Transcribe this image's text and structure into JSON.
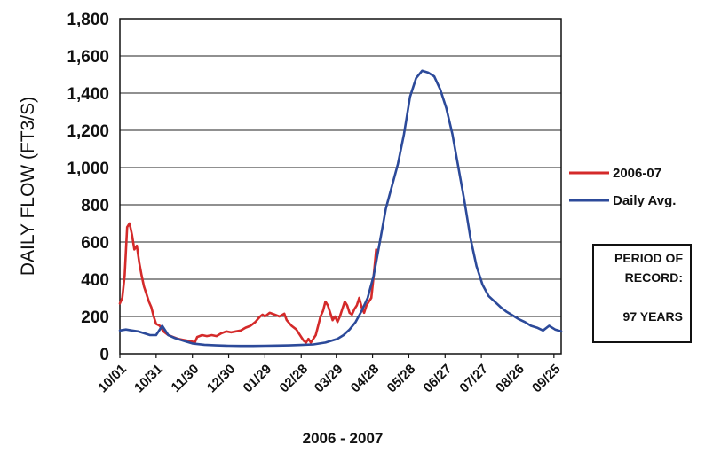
{
  "chart_data": {
    "type": "line",
    "xlabel": "2006 - 2007",
    "ylabel": "DAILY FLOW (FT3/S)",
    "ylim": [
      0,
      1800
    ],
    "y_ticks": [
      0,
      200,
      400,
      600,
      800,
      1000,
      1200,
      1400,
      1600,
      1800
    ],
    "y_tick_labels": [
      "0",
      "200",
      "400",
      "600",
      "800",
      "1,000",
      "1,200",
      "1,400",
      "1,600",
      "1,800"
    ],
    "x_tick_labels": [
      "10/01",
      "10/31",
      "11/30",
      "12/30",
      "01/29",
      "02/28",
      "03/29",
      "04/28",
      "05/28",
      "06/27",
      "07/27",
      "08/26",
      "09/25"
    ],
    "x_tick_days": [
      0,
      30,
      60,
      90,
      120,
      150,
      179,
      209,
      239,
      269,
      299,
      329,
      359
    ],
    "xlim": [
      0,
      365
    ],
    "grid": "horizontal",
    "legend_position": "right",
    "series": [
      {
        "name": "2006-07",
        "color": "#d42a2a",
        "x": [
          0,
          2,
          4,
          6,
          8,
          10,
          12,
          14,
          16,
          18,
          20,
          22,
          24,
          26,
          28,
          30,
          33,
          36,
          40,
          44,
          48,
          52,
          56,
          60,
          62,
          64,
          68,
          72,
          76,
          80,
          84,
          88,
          92,
          96,
          100,
          104,
          108,
          112,
          116,
          118,
          120,
          124,
          128,
          132,
          136,
          138,
          142,
          146,
          148,
          150,
          152,
          154,
          156,
          158,
          160,
          162,
          164,
          166,
          168,
          170,
          172,
          174,
          176,
          178,
          180,
          182,
          184,
          186,
          188,
          190,
          192,
          194,
          196,
          198,
          200,
          202,
          204,
          206,
          208,
          210,
          212
        ],
        "values": [
          270,
          300,
          420,
          680,
          700,
          640,
          560,
          580,
          490,
          420,
          360,
          320,
          280,
          250,
          200,
          160,
          150,
          120,
          100,
          90,
          80,
          75,
          70,
          65,
          60,
          90,
          100,
          95,
          100,
          95,
          110,
          120,
          115,
          120,
          125,
          140,
          150,
          170,
          200,
          210,
          200,
          220,
          210,
          200,
          215,
          180,
          150,
          130,
          110,
          90,
          70,
          60,
          80,
          60,
          80,
          100,
          150,
          200,
          230,
          280,
          260,
          220,
          180,
          200,
          170,
          200,
          240,
          280,
          260,
          220,
          210,
          240,
          260,
          300,
          250,
          220,
          260,
          280,
          300,
          420,
          560
        ]
      },
      {
        "name": "Daily Avg.",
        "color": "#2c4a9a",
        "x": [
          0,
          5,
          10,
          15,
          20,
          25,
          30,
          35,
          40,
          45,
          50,
          55,
          60,
          70,
          80,
          90,
          100,
          110,
          120,
          130,
          140,
          150,
          160,
          170,
          180,
          185,
          190,
          195,
          200,
          205,
          210,
          215,
          220,
          225,
          230,
          235,
          240,
          245,
          250,
          255,
          260,
          265,
          270,
          275,
          280,
          285,
          290,
          295,
          300,
          305,
          310,
          315,
          320,
          325,
          330,
          335,
          340,
          345,
          350,
          355,
          360,
          365
        ],
        "values": [
          125,
          130,
          125,
          120,
          110,
          100,
          100,
          150,
          100,
          85,
          75,
          65,
          55,
          48,
          45,
          43,
          42,
          42,
          43,
          44,
          45,
          47,
          50,
          60,
          80,
          100,
          130,
          170,
          230,
          300,
          420,
          600,
          780,
          900,
          1020,
          1180,
          1380,
          1480,
          1520,
          1510,
          1490,
          1420,
          1320,
          1180,
          1000,
          820,
          620,
          470,
          370,
          310,
          280,
          250,
          225,
          205,
          185,
          170,
          150,
          140,
          125,
          150,
          130,
          120
        ]
      }
    ],
    "annotation": {
      "lines": [
        "PERIOD OF",
        "RECORD:",
        "97 YEARS"
      ]
    }
  }
}
